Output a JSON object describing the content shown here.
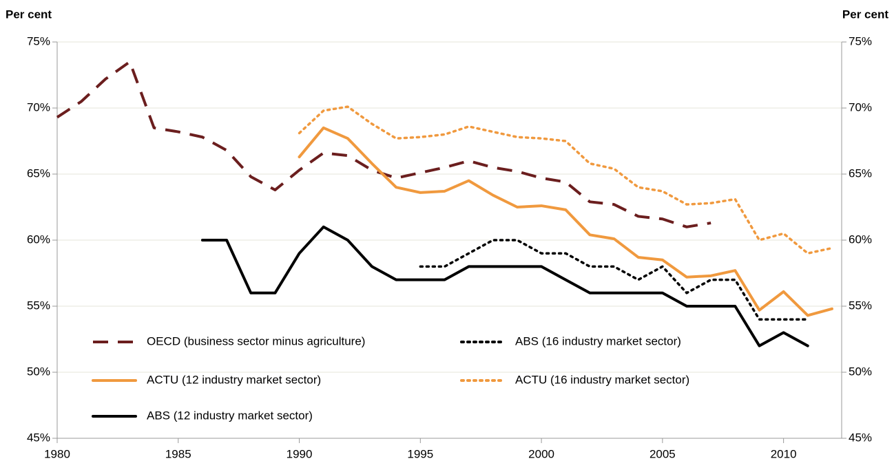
{
  "chart_data": {
    "type": "line",
    "y_label": "Per cent",
    "y2_label": "Per cent",
    "x": [
      1980,
      1981,
      1982,
      1983,
      1984,
      1985,
      1986,
      1987,
      1988,
      1989,
      1990,
      1991,
      1992,
      1993,
      1994,
      1995,
      1996,
      1997,
      1998,
      1999,
      2000,
      2001,
      2002,
      2003,
      2004,
      2005,
      2006,
      2007,
      2008,
      2009,
      2010,
      2011,
      2012
    ],
    "xlim": [
      1980,
      2012.4
    ],
    "xticks": [
      1980,
      1985,
      1990,
      1995,
      2000,
      2005,
      2010
    ],
    "ylim": [
      45,
      75
    ],
    "yticks": [
      {
        "value": 45,
        "label": "45%"
      },
      {
        "value": 50,
        "label": "50%"
      },
      {
        "value": 55,
        "label": "55%"
      },
      {
        "value": 60,
        "label": "60%"
      },
      {
        "value": 65,
        "label": "65%"
      },
      {
        "value": 70,
        "label": "70%"
      },
      {
        "value": 75,
        "label": "75%"
      }
    ],
    "y2lim": [
      45,
      75
    ],
    "y2ticks": [
      {
        "value": 45,
        "label": "45%"
      },
      {
        "value": 50,
        "label": "50%"
      },
      {
        "value": 55,
        "label": "55%"
      },
      {
        "value": 60,
        "label": "60%"
      },
      {
        "value": 65,
        "label": "65%"
      },
      {
        "value": 70,
        "label": "70%"
      },
      {
        "value": 75,
        "label": "75%"
      }
    ],
    "grid": true,
    "series": [
      {
        "name": "OECD (business sector minus agriculture)",
        "color": "#6b1e1e",
        "style": "dashed",
        "values": [
          69.3,
          70.5,
          72.2,
          73.5,
          68.5,
          68.2,
          67.8,
          66.8,
          64.8,
          63.8,
          65.3,
          66.6,
          66.4,
          65.3,
          64.7,
          65.1,
          65.5,
          66.0,
          65.5,
          65.2,
          64.7,
          64.4,
          62.9,
          62.7,
          61.8,
          61.6,
          61.0,
          61.3,
          null,
          null,
          null,
          null,
          null
        ]
      },
      {
        "name": "ABS (16 industry market sector)",
        "color": "#000000",
        "style": "dotted",
        "values": [
          null,
          null,
          null,
          null,
          null,
          null,
          null,
          null,
          null,
          null,
          null,
          null,
          null,
          null,
          null,
          58,
          58,
          59,
          60,
          60,
          59,
          59,
          58,
          58,
          57,
          58,
          56,
          57,
          57,
          54,
          54,
          54,
          null
        ]
      },
      {
        "name": "ACTU (12 industry market sector)",
        "color": "#f0993e",
        "style": "solid",
        "values": [
          null,
          null,
          null,
          null,
          null,
          null,
          null,
          null,
          null,
          null,
          66.3,
          68.5,
          67.7,
          65.8,
          64.0,
          63.6,
          63.7,
          64.5,
          63.4,
          62.5,
          62.6,
          62.3,
          60.4,
          60.1,
          58.7,
          58.5,
          57.2,
          57.3,
          57.7,
          54.7,
          56.1,
          54.3,
          54.8
        ]
      },
      {
        "name": "ACTU (16 industry market sector)",
        "color": "#f0993e",
        "style": "dotted",
        "values": [
          null,
          null,
          null,
          null,
          null,
          null,
          null,
          null,
          null,
          null,
          68.1,
          69.8,
          70.1,
          68.8,
          67.7,
          67.8,
          68.0,
          68.6,
          68.2,
          67.8,
          67.7,
          67.5,
          65.8,
          65.4,
          64.0,
          63.7,
          62.7,
          62.8,
          63.1,
          60.0,
          60.5,
          59.0,
          59.4
        ]
      },
      {
        "name": "ABS (12 industry market sector)",
        "color": "#000000",
        "style": "solid",
        "values": [
          null,
          null,
          null,
          null,
          null,
          null,
          60,
          60,
          56,
          56,
          59,
          61,
          60,
          58,
          57,
          57,
          57,
          58,
          58,
          58,
          58,
          57,
          56,
          56,
          56,
          56,
          55,
          55,
          55,
          52,
          53,
          52,
          null
        ]
      }
    ]
  }
}
